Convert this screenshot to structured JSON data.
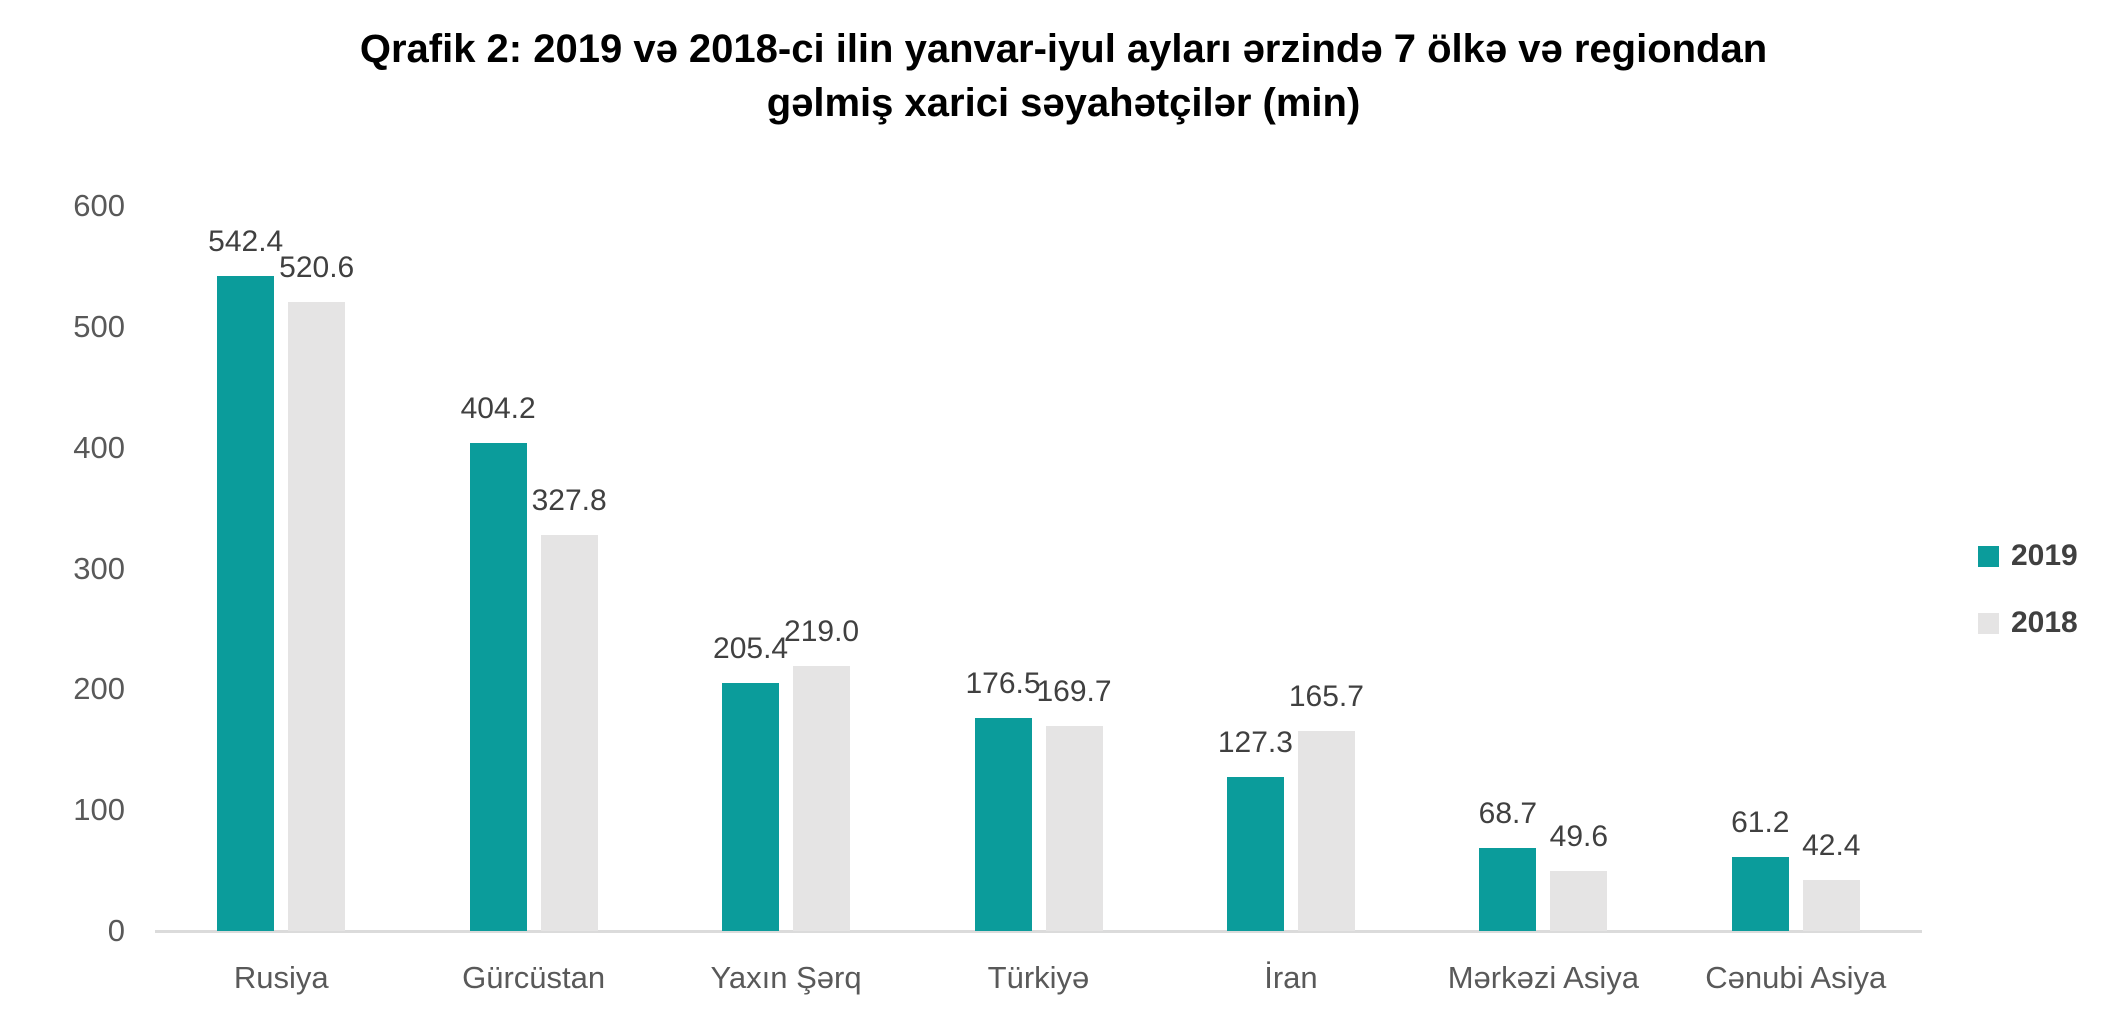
{
  "chart_data": {
    "type": "bar",
    "title": "Qrafik 2: 2019 və 2018-ci ilin yanvar-iyul ayları ərzində 7 ölkə və regiondan gəlmiş xarici səyahətçilər (min)",
    "title_lines": [
      "Qrafik 2: 2019 və 2018-ci ilin yanvar-iyul ayları ərzində 7 ölkə və regiondan",
      "gəlmiş xarici səyahətçilər (min)"
    ],
    "categories": [
      "Rusiya",
      "Gürcüstan",
      "Yaxın Şərq",
      "Türkiyə",
      "İran",
      "Mərkəzi Asiya",
      "Cənubi Asiya"
    ],
    "series": [
      {
        "name": "2019",
        "color": "#0B9C9B",
        "values": [
          542.4,
          404.2,
          205.4,
          176.5,
          127.3,
          68.7,
          61.2
        ]
      },
      {
        "name": "2018",
        "color": "#E5E4E4",
        "values": [
          520.6,
          327.8,
          219.0,
          169.7,
          165.7,
          49.6,
          42.4
        ]
      }
    ],
    "xlabel": "",
    "ylabel": "",
    "ylim": [
      0,
      600
    ],
    "yticks": [
      0,
      100,
      200,
      300,
      400,
      500,
      600
    ],
    "grid": false,
    "legend_position": "right",
    "value_decimals": 1,
    "data_labels": true
  },
  "colors": {
    "background": "#FFFFFF",
    "title_text": "#000000",
    "axis_label_text": "#595959",
    "category_label_text": "#595959",
    "data_label_text": "#404040",
    "legend_text": "#404040",
    "axis_line": "#DBDBDB",
    "series_2019": "#0B9C9B",
    "series_2018": "#E5E4E4"
  }
}
